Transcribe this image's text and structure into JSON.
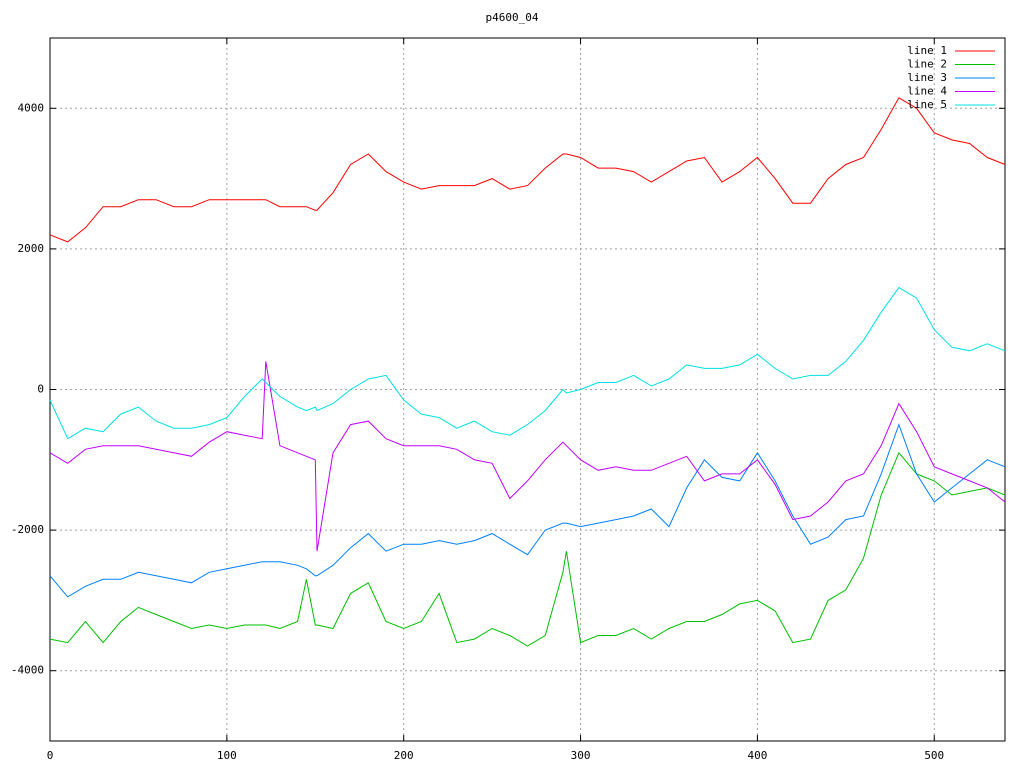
{
  "chart_data": {
    "type": "line",
    "title": "p4600_04",
    "x": [
      0,
      10,
      20,
      30,
      40,
      50,
      60,
      70,
      80,
      90,
      100,
      110,
      120,
      122,
      130,
      140,
      145,
      150,
      151,
      160,
      170,
      180,
      190,
      200,
      210,
      220,
      230,
      240,
      250,
      260,
      270,
      280,
      290,
      292,
      300,
      310,
      320,
      330,
      340,
      350,
      360,
      370,
      380,
      390,
      400,
      410,
      420,
      430,
      440,
      450,
      460,
      470,
      480,
      490,
      500,
      510,
      520,
      530,
      540
    ],
    "series": [
      {
        "name": "line 1",
        "color": "#ff0000",
        "values": [
          2200,
          2100,
          2300,
          2600,
          2600,
          2700,
          2700,
          2600,
          2600,
          2700,
          2700,
          2700,
          2700,
          2700,
          2600,
          2600,
          2600,
          2550,
          2550,
          2800,
          3200,
          3350,
          3100,
          2950,
          2850,
          2900,
          2900,
          2900,
          3000,
          2850,
          2900,
          3150,
          3350,
          3350,
          3300,
          3150,
          3150,
          3100,
          2950,
          3100,
          3250,
          3300,
          2950,
          3100,
          3300,
          3000,
          2650,
          2650,
          3000,
          3200,
          3300,
          3700,
          4150,
          4000,
          3650,
          3550,
          3500,
          3300,
          3200
        ]
      },
      {
        "name": "line 2",
        "color": "#00c000",
        "values": [
          -3550,
          -3600,
          -3300,
          -3600,
          -3300,
          -3100,
          -3200,
          -3300,
          -3400,
          -3350,
          -3400,
          -3350,
          -3350,
          -3350,
          -3400,
          -3300,
          -2700,
          -3350,
          -3350,
          -3400,
          -2900,
          -2750,
          -3300,
          -3400,
          -3300,
          -2900,
          -3600,
          -3550,
          -3400,
          -3500,
          -3650,
          -3500,
          -2600,
          -2300,
          -3600,
          -3500,
          -3500,
          -3400,
          -3550,
          -3400,
          -3300,
          -3300,
          -3200,
          -3050,
          -3000,
          -3150,
          -3600,
          -3550,
          -3000,
          -2850,
          -2400,
          -1500,
          -900,
          -1200,
          -1300,
          -1500,
          -1450,
          -1400,
          -1500
        ]
      },
      {
        "name": "line 3",
        "color": "#0080ff",
        "values": [
          -2650,
          -2950,
          -2800,
          -2700,
          -2700,
          -2600,
          -2650,
          -2700,
          -2750,
          -2600,
          -2550,
          -2500,
          -2450,
          -2450,
          -2450,
          -2500,
          -2550,
          -2650,
          -2650,
          -2500,
          -2250,
          -2050,
          -2300,
          -2200,
          -2200,
          -2150,
          -2200,
          -2150,
          -2050,
          -2200,
          -2350,
          -2000,
          -1900,
          -1900,
          -1950,
          -1900,
          -1850,
          -1800,
          -1700,
          -1950,
          -1400,
          -1000,
          -1250,
          -1300,
          -900,
          -1300,
          -1800,
          -2200,
          -2100,
          -1850,
          -1800,
          -1200,
          -500,
          -1200,
          -1600,
          -1400,
          -1200,
          -1000,
          -1100
        ]
      },
      {
        "name": "line 4",
        "color": "#c000ff",
        "values": [
          -900,
          -1050,
          -850,
          -800,
          -800,
          -800,
          -850,
          -900,
          -950,
          -750,
          -600,
          -650,
          -700,
          400,
          -800,
          -900,
          -950,
          -1000,
          -2300,
          -900,
          -500,
          -450,
          -700,
          -800,
          -800,
          -800,
          -850,
          -1000,
          -1050,
          -1550,
          -1300,
          -1000,
          -750,
          -800,
          -1000,
          -1150,
          -1100,
          -1150,
          -1150,
          -1050,
          -950,
          -1300,
          -1200,
          -1200,
          -1000,
          -1350,
          -1850,
          -1800,
          -1600,
          -1300,
          -1200,
          -800,
          -200,
          -600,
          -1100,
          -1200,
          -1300,
          -1400,
          -1600
        ]
      },
      {
        "name": "line 5",
        "color": "#00e0e0",
        "values": [
          -150,
          -700,
          -550,
          -600,
          -350,
          -250,
          -450,
          -550,
          -550,
          -500,
          -400,
          -100,
          150,
          100,
          -100,
          -250,
          -300,
          -250,
          -300,
          -200,
          0,
          150,
          200,
          -150,
          -350,
          -400,
          -550,
          -450,
          -600,
          -650,
          -500,
          -300,
          0,
          -50,
          0,
          100,
          100,
          200,
          50,
          150,
          350,
          300,
          300,
          350,
          500,
          300,
          150,
          200,
          200,
          400,
          700,
          1100,
          1450,
          1300,
          850,
          600,
          550,
          650,
          550
        ]
      }
    ],
    "xlim": [
      0,
      540
    ],
    "ylim": [
      -5000,
      5000
    ],
    "xticks": [
      0,
      100,
      200,
      300,
      400,
      500
    ],
    "yticks": [
      -4000,
      -2000,
      0,
      2000,
      4000
    ],
    "grid": true,
    "legend": "top-right"
  }
}
